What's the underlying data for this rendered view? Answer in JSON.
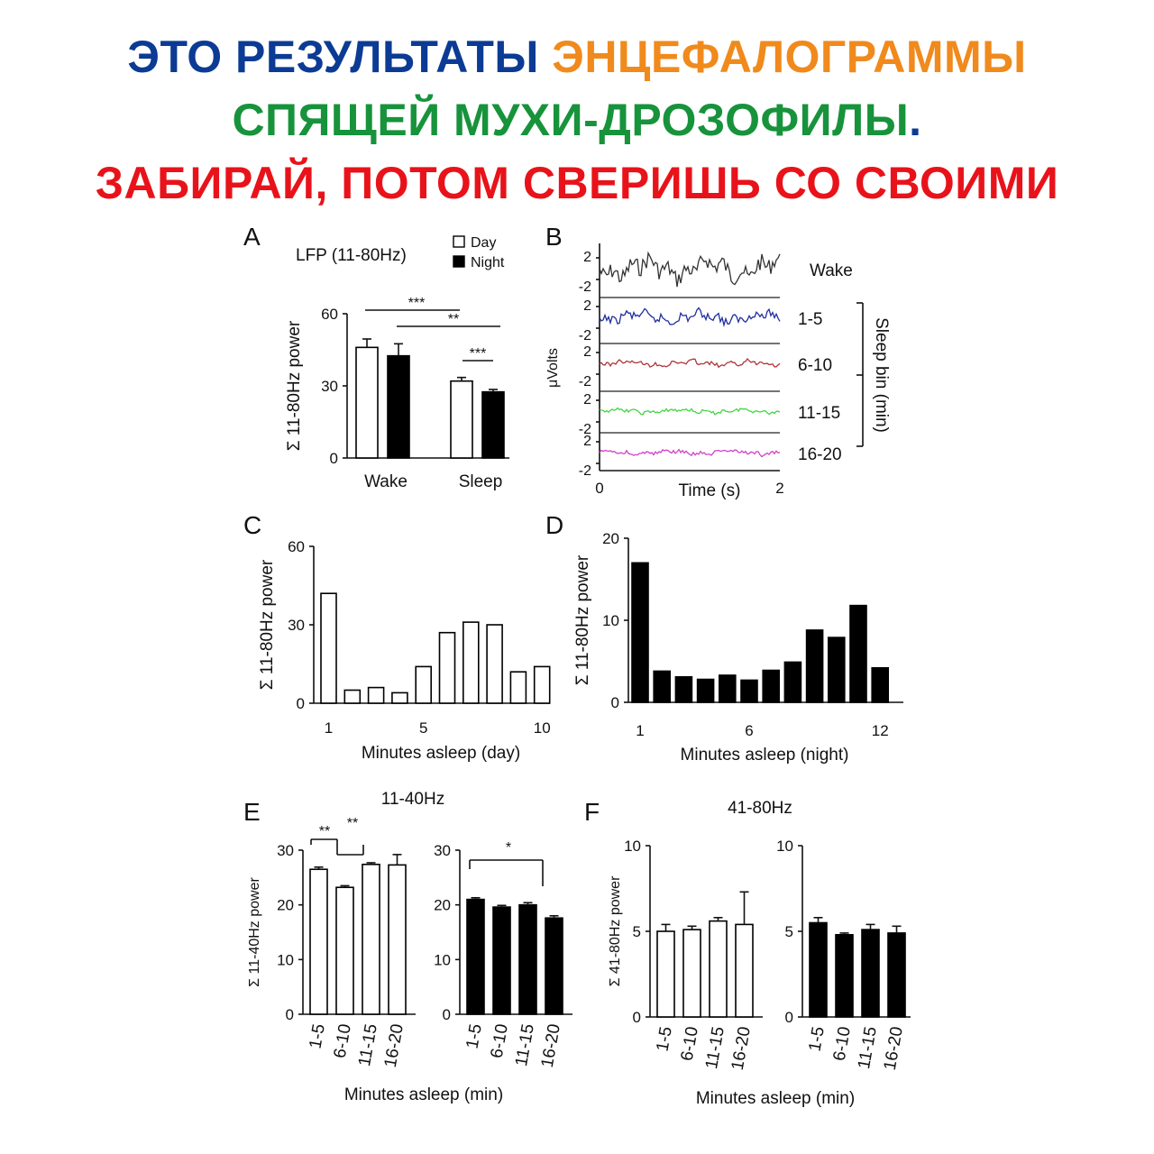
{
  "headline": {
    "line1_a": "ЭТО РЕЗУЛЬТАТЫ",
    "line1_b": "ЭНЦЕФАЛОГРАММЫ",
    "line2_a": "СПЯЩЕЙ МУХИ-ДРОЗОФИЛЫ",
    "line2_b": ".",
    "line3": "ЗАБИРАЙ, ПОТОМ СВЕРИШЬ СО СВОИМИ",
    "colors": {
      "blue": "#0b3b94",
      "orange": "#f08a1c",
      "green": "#17933b",
      "red": "#e8131a"
    }
  },
  "colors": {
    "wake": "#333333",
    "bin1": "#1f2f9e",
    "bin2": "#b0353a",
    "bin3": "#44d444",
    "bin4": "#d041c8",
    "bar_day": "#ffffff",
    "bar_night": "#000000"
  },
  "chart_data": [
    {
      "panel": "A",
      "type": "bar",
      "title": "LFP (11-80Hz)",
      "ylabel": "Σ 11-80Hz power",
      "categories": [
        "Wake",
        "Sleep"
      ],
      "ylim": [
        0,
        60
      ],
      "yticks": [
        "0",
        "30",
        "60"
      ],
      "series": [
        {
          "name": "Day",
          "values": [
            46,
            32
          ],
          "errors": [
            3.5,
            1.5
          ]
        },
        {
          "name": "Night",
          "values": [
            42.5,
            27.5
          ],
          "errors": [
            5,
            1
          ]
        }
      ],
      "significance": [
        "***",
        "**",
        "***"
      ]
    },
    {
      "panel": "B",
      "type": "line",
      "xlabel": "Time (s)",
      "ylabel": "μVolts",
      "xlim": [
        0,
        2
      ],
      "xticks": [
        "0",
        "2"
      ],
      "yticks": [
        "2",
        "-2"
      ],
      "bracket_label": "Sleep bin (min)",
      "series": [
        {
          "name": "Wake",
          "amplitude": 0.9
        },
        {
          "name": "1-5",
          "amplitude": 0.45
        },
        {
          "name": "6-10",
          "amplitude": 0.22
        },
        {
          "name": "11-15",
          "amplitude": 0.18
        },
        {
          "name": "16-20",
          "amplitude": 0.2
        }
      ]
    },
    {
      "panel": "C",
      "type": "bar",
      "xlabel": "Minutes asleep (day)",
      "ylabel": "Σ 11-80Hz power",
      "ylim": [
        0,
        60
      ],
      "yticks": [
        "0",
        "30",
        "60"
      ],
      "xticks": [
        "1",
        "5",
        "10"
      ],
      "categories": [
        1,
        2,
        3,
        4,
        5,
        6,
        7,
        8,
        9,
        10
      ],
      "values": [
        42,
        5,
        6,
        4,
        14,
        27,
        31,
        30,
        12,
        14
      ]
    },
    {
      "panel": "D",
      "type": "bar",
      "xlabel": "Minutes asleep (night)",
      "ylabel": "Σ 11-80Hz power",
      "ylim": [
        0,
        20
      ],
      "yticks": [
        "0",
        "10",
        "20"
      ],
      "xticks": [
        "1",
        "6",
        "12"
      ],
      "categories": [
        1,
        2,
        3,
        4,
        5,
        6,
        7,
        8,
        9,
        10,
        11,
        12
      ],
      "values": [
        17,
        3.8,
        3.1,
        2.8,
        3.3,
        2.7,
        3.9,
        4.9,
        8.8,
        7.9,
        11.8,
        4.2
      ]
    },
    {
      "panel": "E",
      "type": "bar",
      "title": "11-40Hz",
      "xlabel": "Minutes asleep (min)",
      "ylabel": "Σ 11-40Hz power",
      "ylim": [
        0,
        30
      ],
      "yticks": [
        "0",
        "10",
        "20",
        "30"
      ],
      "categories": [
        "1-5",
        "6-10",
        "11-15",
        "16-20"
      ],
      "series": [
        {
          "name": "Day",
          "values": [
            26.5,
            23.2,
            27.4,
            27.3
          ],
          "errors": [
            0.4,
            0.3,
            0.3,
            1.9
          ],
          "significance": [
            "**",
            "**"
          ]
        },
        {
          "name": "Night",
          "values": [
            21,
            19.6,
            20,
            17.6
          ],
          "errors": [
            0.3,
            0.3,
            0.4,
            0.4
          ],
          "significance": [
            "*"
          ]
        }
      ]
    },
    {
      "panel": "F",
      "type": "bar",
      "title": "41-80Hz",
      "xlabel": "Minutes asleep (min)",
      "ylabel": "Σ 41-80Hz power",
      "ylim": [
        0,
        10
      ],
      "yticks": [
        "0",
        "5",
        "10"
      ],
      "categories": [
        "1-5",
        "6-10",
        "11-15",
        "16-20"
      ],
      "series": [
        {
          "name": "Day",
          "values": [
            5,
            5.1,
            5.6,
            5.4
          ],
          "errors": [
            0.4,
            0.2,
            0.2,
            1.9
          ]
        },
        {
          "name": "Night",
          "values": [
            5.5,
            4.8,
            5.1,
            4.9
          ],
          "errors": [
            0.3,
            0.1,
            0.3,
            0.4
          ]
        }
      ]
    }
  ]
}
